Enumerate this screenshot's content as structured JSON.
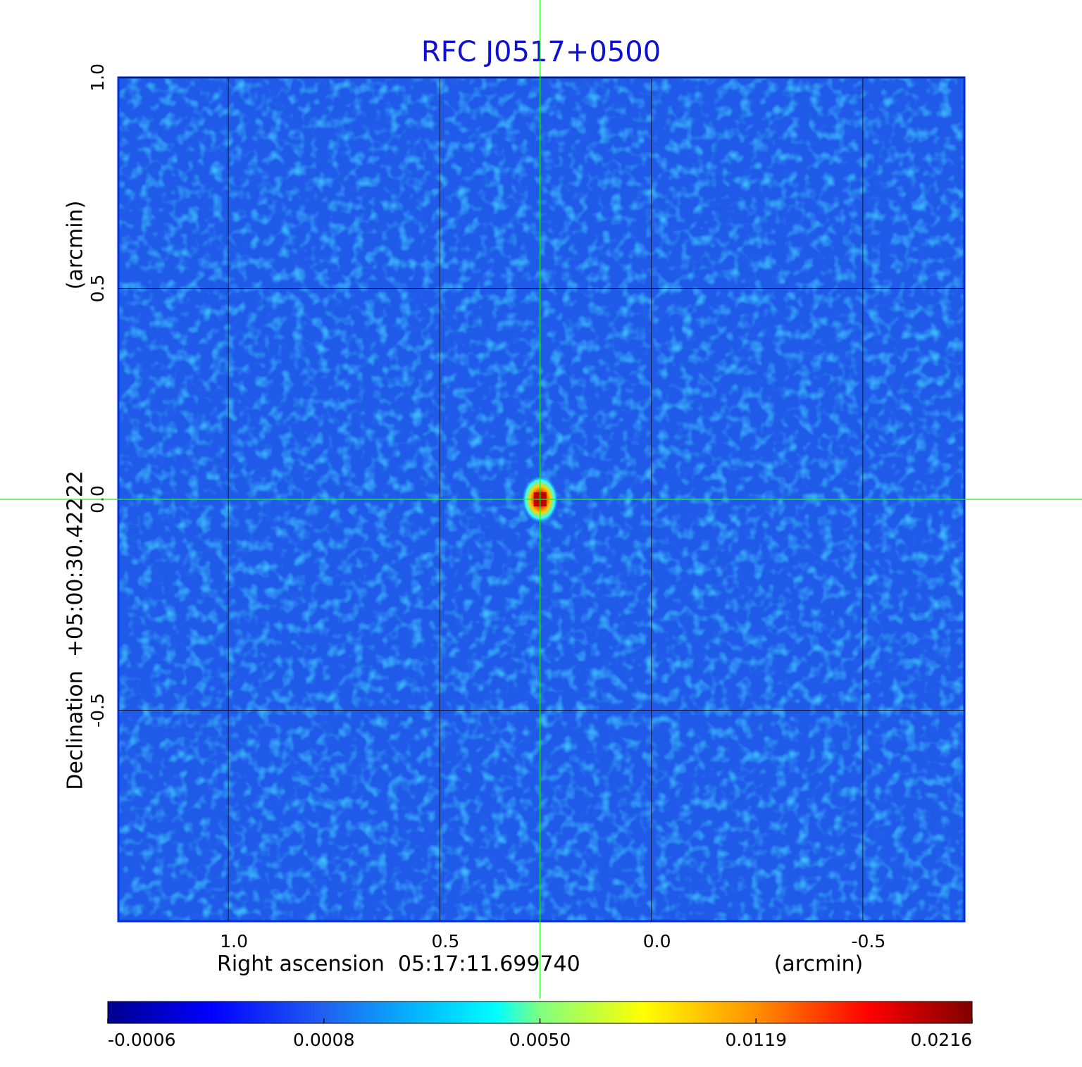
{
  "chart_data": {
    "type": "image",
    "title": "RFC J0517+0500",
    "x_label": "Right ascension  05:17:11.699740",
    "x_unit": "(arcmin)",
    "y_label": "Declination  +05:00:30.42222",
    "y_unit": "(arcmin)",
    "xlim": [
      1.26,
      -0.74
    ],
    "ylim": [
      -1.0,
      1.0
    ],
    "xticks": [
      {
        "value": 1.0,
        "label": "1.0"
      },
      0.5,
      {
        "value": 0.0,
        "label": "0.0"
      },
      -0.5
    ],
    "yticks": [
      -0.5,
      {
        "value": 0.0,
        "label": "0.0"
      },
      0.5,
      {
        "value": 1.0,
        "label": "1.0"
      }
    ],
    "grid": true,
    "crosshair": {
      "x": 0.263,
      "y": 0.0
    },
    "source": {
      "x": 0.263,
      "y": 0.0,
      "peak": 0.0216
    },
    "colorbar": {
      "ticks": [
        -0.0006,
        0.0008,
        {
          "value": 0.005,
          "label": "0.0050"
        },
        0.0119,
        0.0216
      ]
    }
  }
}
